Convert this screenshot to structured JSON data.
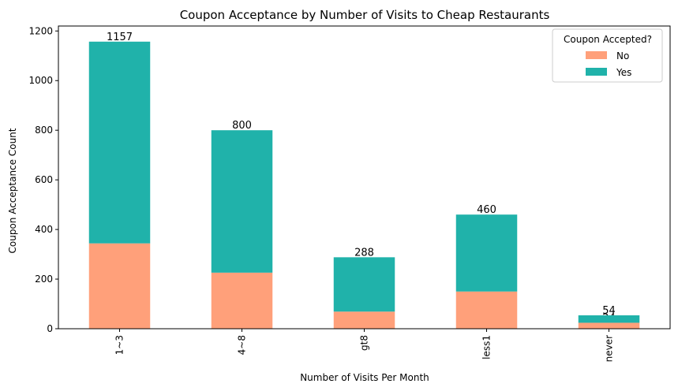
{
  "chart_data": {
    "type": "bar",
    "stacked": true,
    "title": "Coupon Acceptance by Number of Visits to Cheap Restaurants",
    "xlabel": "Number of Visits Per Month",
    "ylabel": "Coupon Acceptance Count",
    "categories": [
      "1~3",
      "4~8",
      "gt8",
      "less1",
      "never"
    ],
    "series": [
      {
        "name": "No",
        "color": "#ffa07a",
        "values": [
          344,
          226,
          69,
          150,
          24
        ]
      },
      {
        "name": "Yes",
        "color": "#20b2aa",
        "values": [
          813,
          574,
          219,
          310,
          30
        ]
      }
    ],
    "data_labels": {
      "No": [
        "344",
        "226",
        "69",
        "150",
        "24"
      ],
      "Yes": [
        "1157",
        "800",
        "288",
        "460",
        "54"
      ]
    },
    "ylim": [
      0,
      1220
    ],
    "yticks": [
      0,
      200,
      400,
      600,
      800,
      1000,
      1200
    ],
    "legend": {
      "title": "Coupon Accepted?",
      "placement": "top-right"
    },
    "grid": false
  }
}
